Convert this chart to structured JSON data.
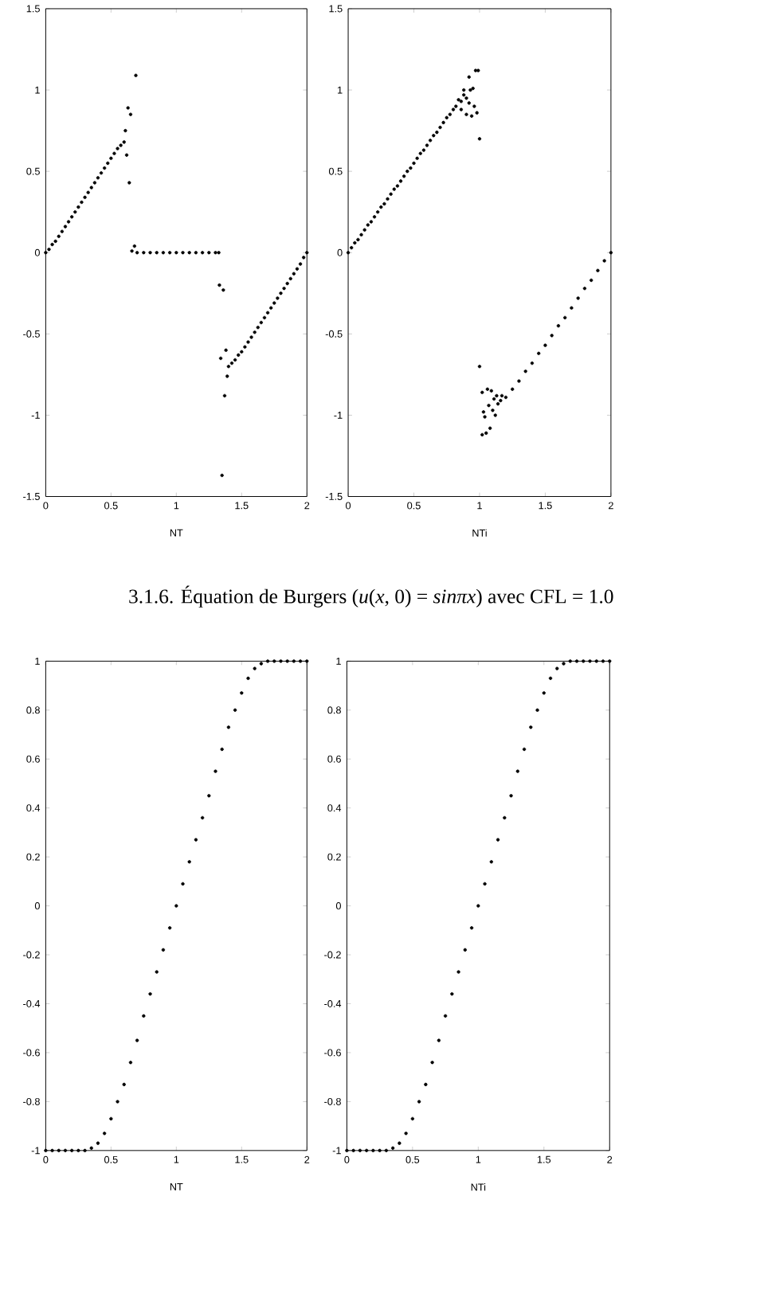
{
  "chart_data": [
    {
      "type": "scatter",
      "xlabel": "NT",
      "color": "#000000",
      "xlim": [
        0,
        2
      ],
      "xticks": [
        0,
        0.5,
        1,
        1.5,
        2
      ],
      "ylim": [
        -1.5,
        1.5
      ],
      "yticks": [
        -1.5,
        -1,
        -0.5,
        0,
        0.5,
        1,
        1.5
      ],
      "annotations": [
        "3.1.6. Équation de Burgers (*u*(*x*, 0) = *sinπx*) avec CFL = 1.0"
      ],
      "x": [
        0,
        0.025,
        0.05,
        0.075,
        0.1,
        0.125,
        0.15,
        0.175,
        0.2,
        0.225,
        0.25,
        0.275,
        0.3,
        0.325,
        0.35,
        0.375,
        0.4,
        0.425,
        0.45,
        0.475,
        0.5,
        0.525,
        0.55,
        0.575,
        0.6,
        0.61,
        0.63,
        0.62,
        0.64,
        0.65,
        0.69,
        0.66,
        0.68,
        0.7,
        0.75,
        0.8,
        0.85,
        0.9,
        0.95,
        1.0,
        1.05,
        1.1,
        1.15,
        1.2,
        1.25,
        1.3,
        1.325,
        1.33,
        1.36,
        1.34,
        1.38,
        1.39,
        1.37,
        1.35,
        1.4,
        1.425,
        1.45,
        1.475,
        1.5,
        1.525,
        1.55,
        1.575,
        1.6,
        1.625,
        1.65,
        1.675,
        1.7,
        1.725,
        1.75,
        1.775,
        1.8,
        1.825,
        1.85,
        1.875,
        1.9,
        1.925,
        1.95,
        1.975,
        2.0
      ],
      "values": [
        0,
        0.02,
        0.05,
        0.07,
        0.1,
        0.13,
        0.16,
        0.19,
        0.22,
        0.25,
        0.28,
        0.31,
        0.34,
        0.37,
        0.4,
        0.43,
        0.46,
        0.49,
        0.52,
        0.55,
        0.58,
        0.61,
        0.64,
        0.66,
        0.68,
        0.75,
        0.89,
        0.6,
        0.43,
        0.85,
        1.09,
        0.01,
        0.04,
        0,
        0,
        0,
        0,
        0,
        0,
        0,
        0,
        0,
        0,
        0,
        0,
        0,
        0,
        -0.2,
        -0.23,
        -0.65,
        -0.6,
        -0.76,
        -0.88,
        -1.37,
        -0.7,
        -0.68,
        -0.66,
        -0.63,
        -0.61,
        -0.58,
        -0.55,
        -0.52,
        -0.49,
        -0.46,
        -0.43,
        -0.4,
        -0.37,
        -0.34,
        -0.31,
        -0.28,
        -0.25,
        -0.22,
        -0.19,
        -0.16,
        -0.13,
        -0.1,
        -0.07,
        -0.03,
        0
      ]
    },
    {
      "type": "scatter",
      "xlabel": "NTi",
      "color": "#000000",
      "xlim": [
        0,
        2
      ],
      "xticks": [
        0,
        0.5,
        1,
        1.5,
        2
      ],
      "ylim": [
        -1.5,
        1.5
      ],
      "yticks": [
        -1.5,
        -1,
        -0.5,
        0,
        0.5,
        1,
        1.5
      ],
      "x": [
        0,
        0.025,
        0.05,
        0.075,
        0.1,
        0.125,
        0.15,
        0.175,
        0.2,
        0.225,
        0.25,
        0.275,
        0.3,
        0.325,
        0.35,
        0.375,
        0.4,
        0.425,
        0.45,
        0.475,
        0.5,
        0.525,
        0.55,
        0.575,
        0.6,
        0.625,
        0.65,
        0.675,
        0.7,
        0.725,
        0.75,
        0.775,
        0.8,
        0.82,
        0.84,
        0.86,
        0.86,
        0.88,
        0.88,
        0.9,
        0.9,
        0.92,
        0.92,
        0.93,
        0.94,
        0.95,
        0.96,
        0.97,
        0.98,
        0.99,
        1.0,
        1.0,
        1.02,
        1.02,
        1.03,
        1.04,
        1.05,
        1.06,
        1.07,
        1.08,
        1.09,
        1.1,
        1.11,
        1.12,
        1.13,
        1.14,
        1.16,
        1.17,
        1.2,
        1.25,
        1.3,
        1.35,
        1.4,
        1.45,
        1.5,
        1.55,
        1.6,
        1.65,
        1.7,
        1.75,
        1.8,
        1.85,
        1.9,
        1.95,
        2.0
      ],
      "values": [
        0,
        0.03,
        0.06,
        0.08,
        0.11,
        0.14,
        0.17,
        0.19,
        0.22,
        0.25,
        0.28,
        0.3,
        0.33,
        0.36,
        0.39,
        0.41,
        0.44,
        0.47,
        0.5,
        0.52,
        0.55,
        0.58,
        0.61,
        0.63,
        0.66,
        0.69,
        0.72,
        0.74,
        0.77,
        0.8,
        0.83,
        0.85,
        0.88,
        0.9,
        0.94,
        0.88,
        0.93,
        0.97,
        1.0,
        0.95,
        0.85,
        1.08,
        0.92,
        1.0,
        0.84,
        1.01,
        0.9,
        1.12,
        0.86,
        1.12,
        0.7,
        -0.7,
        -0.86,
        -1.12,
        -0.98,
        -1.01,
        -1.11,
        -0.84,
        -0.94,
        -1.08,
        -0.85,
        -0.97,
        -0.9,
        -1.0,
        -0.88,
        -0.93,
        -0.91,
        -0.88,
        -0.89,
        -0.84,
        -0.79,
        -0.73,
        -0.68,
        -0.62,
        -0.57,
        -0.51,
        -0.45,
        -0.4,
        -0.34,
        -0.28,
        -0.22,
        -0.17,
        -0.11,
        -0.05,
        0
      ]
    },
    {
      "type": "scatter",
      "xlabel": "NT",
      "color": "#000000",
      "xlim": [
        0,
        2
      ],
      "xticks": [
        0,
        0.5,
        1,
        1.5,
        2
      ],
      "ylim": [
        -1,
        1
      ],
      "yticks": [
        -1,
        -0.8,
        -0.6,
        -0.4,
        -0.2,
        0,
        0.2,
        0.4,
        0.6,
        0.8,
        1
      ],
      "x": [
        0,
        0.05,
        0.1,
        0.15,
        0.2,
        0.25,
        0.3,
        0.35,
        0.4,
        0.45,
        0.5,
        0.55,
        0.6,
        0.65,
        0.7,
        0.75,
        0.8,
        0.85,
        0.9,
        0.95,
        1.0,
        1.05,
        1.1,
        1.15,
        1.2,
        1.25,
        1.3,
        1.35,
        1.4,
        1.45,
        1.5,
        1.55,
        1.6,
        1.65,
        1.7,
        1.75,
        1.8,
        1.85,
        1.9,
        1.95,
        2.0
      ],
      "values": [
        -1,
        -1,
        -1,
        -1,
        -1,
        -1,
        -1,
        -0.99,
        -0.97,
        -0.93,
        -0.87,
        -0.8,
        -0.73,
        -0.64,
        -0.55,
        -0.45,
        -0.36,
        -0.27,
        -0.18,
        -0.09,
        0,
        0.09,
        0.18,
        0.27,
        0.36,
        0.45,
        0.55,
        0.64,
        0.73,
        0.8,
        0.87,
        0.93,
        0.97,
        0.99,
        1,
        1,
        1,
        1,
        1,
        1,
        1
      ]
    },
    {
      "type": "scatter",
      "xlabel": "NTi",
      "color": "#000000",
      "xlim": [
        0,
        2
      ],
      "xticks": [
        0,
        0.5,
        1,
        1.5,
        2
      ],
      "ylim": [
        -1,
        1
      ],
      "yticks": [
        -1,
        -0.8,
        -0.6,
        -0.4,
        -0.2,
        0,
        0.2,
        0.4,
        0.6,
        0.8,
        1
      ],
      "x": [
        0,
        0.05,
        0.1,
        0.15,
        0.2,
        0.25,
        0.3,
        0.35,
        0.4,
        0.45,
        0.5,
        0.55,
        0.6,
        0.65,
        0.7,
        0.75,
        0.8,
        0.85,
        0.9,
        0.95,
        1.0,
        1.05,
        1.1,
        1.15,
        1.2,
        1.25,
        1.3,
        1.35,
        1.4,
        1.45,
        1.5,
        1.55,
        1.6,
        1.65,
        1.7,
        1.75,
        1.8,
        1.85,
        1.9,
        1.95,
        2.0
      ],
      "values": [
        -1,
        -1,
        -1,
        -1,
        -1,
        -1,
        -1,
        -0.99,
        -0.97,
        -0.93,
        -0.87,
        -0.8,
        -0.73,
        -0.64,
        -0.55,
        -0.45,
        -0.36,
        -0.27,
        -0.18,
        -0.09,
        0,
        0.09,
        0.18,
        0.27,
        0.36,
        0.45,
        0.55,
        0.64,
        0.73,
        0.8,
        0.87,
        0.93,
        0.97,
        0.99,
        1,
        1,
        1,
        1,
        1,
        1,
        1
      ]
    }
  ]
}
